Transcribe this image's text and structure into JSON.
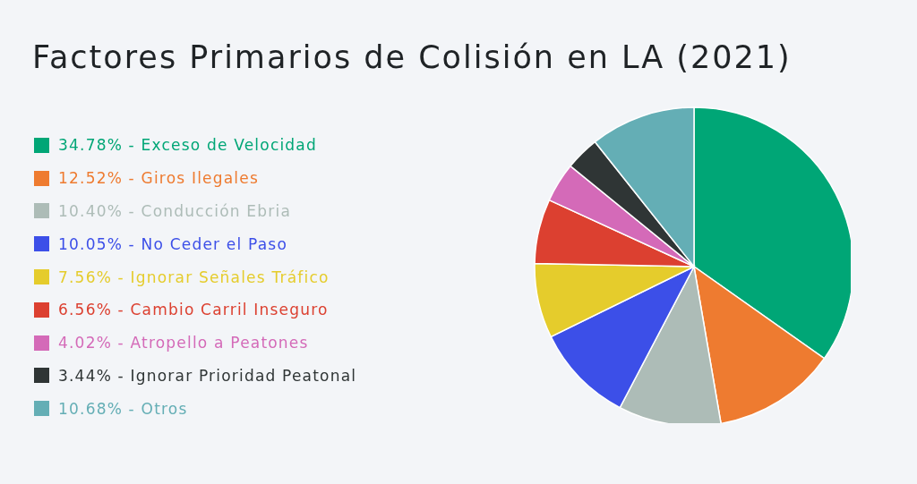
{
  "chart_data": {
    "type": "pie",
    "title": "Factores Primarios de Colisión en LA (2021)",
    "categories": [
      "Exceso de Velocidad",
      "Giros Ilegales",
      "Conducción Ebria",
      "No Ceder el Paso",
      "Ignorar Señales Tráfico",
      "Cambio Carril Inseguro",
      "Atropello a Peatones",
      "Ignorar Prioridad Peatonal",
      "Otros"
    ],
    "values": [
      34.78,
      12.52,
      10.4,
      10.05,
      7.56,
      6.56,
      4.02,
      3.44,
      10.68
    ],
    "value_labels": [
      "34.78%",
      "12.52%",
      "10.40%",
      "10.05%",
      "7.56%",
      "6.56%",
      "4.02%",
      "3.44%",
      "10.68%"
    ],
    "colors": [
      "#00a676",
      "#ee7b30",
      "#adbcb7",
      "#3c4fe8",
      "#e5cc2c",
      "#dc4030",
      "#d46ab8",
      "#2f3535",
      "#64aeb5"
    ],
    "legend": "left"
  }
}
